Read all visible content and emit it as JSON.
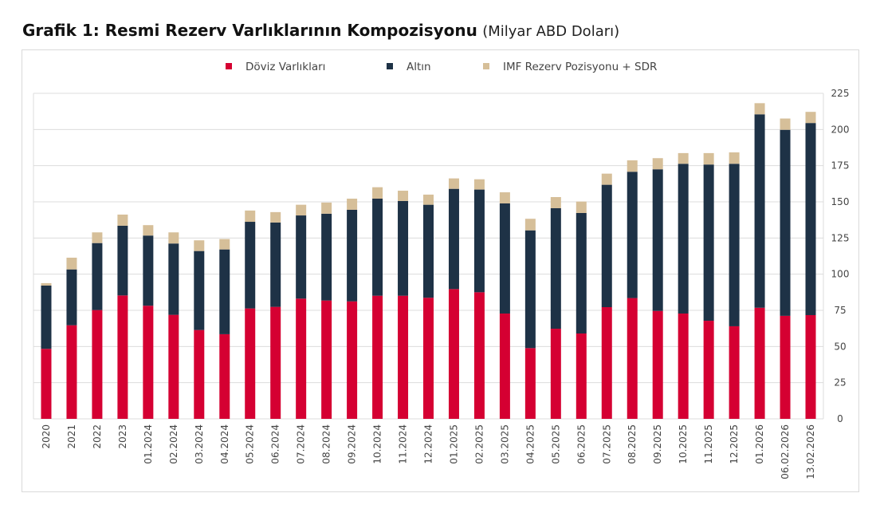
{
  "title": "Grafik 1: Resmi Rezerv Varlıklarının Kompozisyonu",
  "subtitle": "(Milyar ABD Doları)",
  "chart_data": {
    "type": "bar",
    "stacked": true,
    "title": "Grafik 1: Resmi Rezerv Varlıklarının Kompozisyonu",
    "subtitle": "(Milyar ABD Doları)",
    "xlabel": "",
    "ylabel": "",
    "ylim": [
      0,
      225
    ],
    "yticks": [
      0,
      25,
      50,
      75,
      100,
      125,
      150,
      175,
      200,
      225
    ],
    "y_axis_side": "right",
    "grid": true,
    "legend_position": "top",
    "categories": [
      "2020",
      "2021",
      "2022",
      "2023",
      "01.2024",
      "02.2024",
      "03.2024",
      "04.2024",
      "05.2024",
      "06.2024",
      "07.2024",
      "08.2024",
      "09.2024",
      "10.2024",
      "11.2024",
      "12.2024",
      "01.2025",
      "02.2025",
      "03.2025",
      "04.2025",
      "05.2025",
      "06.2025",
      "07.2025",
      "08.2025",
      "09.2025",
      "10.2025",
      "11.2025",
      "12.2025",
      "01.2026",
      "06.02.2026",
      "13.02.2026"
    ],
    "series": [
      {
        "name": "Döviz Varlıkları",
        "color": "#d50032",
        "values": [
          48.4,
          64.7,
          75.2,
          85.3,
          78.2,
          71.9,
          61.4,
          58.5,
          76.3,
          77.4,
          83.1,
          81.8,
          81.2,
          85.1,
          85.1,
          83.7,
          89.7,
          87.5,
          72.8,
          48.9,
          62.3,
          59.0,
          77.2,
          83.5,
          74.6,
          72.8,
          67.8,
          64.0,
          76.8,
          71.2,
          71.7
        ]
      },
      {
        "name": "Altın",
        "color": "#1e3246",
        "values": [
          43.7,
          38.6,
          46.3,
          48.2,
          48.5,
          49.3,
          54.6,
          58.6,
          59.9,
          58.3,
          57.5,
          60.0,
          63.3,
          67.1,
          65.5,
          64.3,
          69.3,
          71.0,
          76.1,
          81.4,
          83.3,
          83.3,
          84.6,
          87.3,
          97.9,
          103.5,
          108.0,
          112.3,
          133.7,
          128.6,
          132.8
        ]
      },
      {
        "name": "IMF Rezerv Pozisyonu + SDR",
        "color": "#d6bf99",
        "values": [
          1.7,
          8.1,
          7.4,
          7.7,
          7.2,
          7.7,
          7.4,
          7.2,
          7.8,
          7.2,
          7.4,
          7.7,
          7.7,
          7.9,
          7.1,
          7.0,
          7.2,
          7.1,
          7.7,
          8.0,
          7.7,
          7.9,
          7.7,
          7.9,
          7.7,
          7.4,
          7.9,
          7.9,
          7.7,
          7.8,
          7.7
        ]
      }
    ]
  }
}
